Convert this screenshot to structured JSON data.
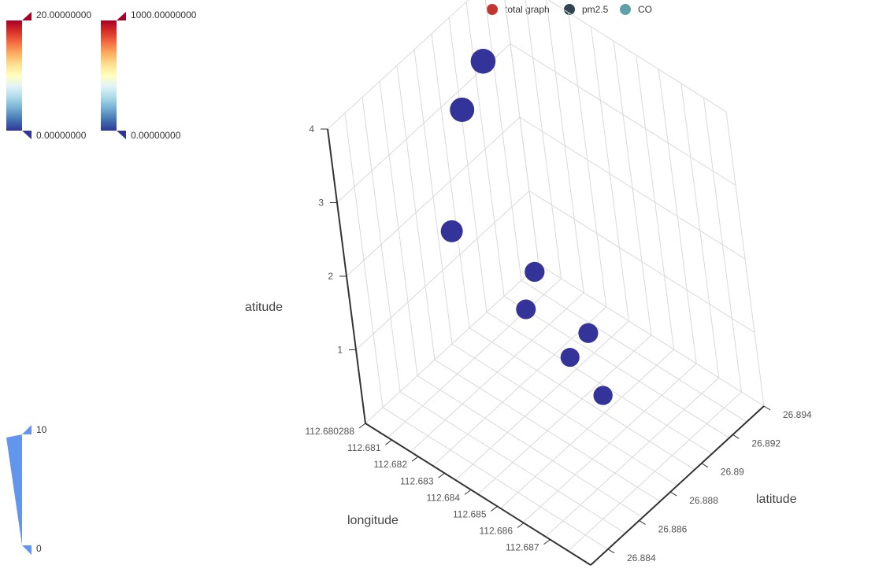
{
  "legend": [
    {
      "name": "total graph",
      "color": "#c23531"
    },
    {
      "name": "pm2.5",
      "color": "#2f4554"
    },
    {
      "name": "CO",
      "color": "#61a0a8"
    }
  ],
  "visual_maps": [
    {
      "type": "continuous",
      "max_label": "20.00000000",
      "min_label": "0.00000000",
      "colors": [
        "#313695",
        "#4575b4",
        "#74add1",
        "#abd9e9",
        "#e0f3f8",
        "#ffffbf",
        "#fee090",
        "#fdae61",
        "#f46d43",
        "#d73027",
        "#a50026"
      ],
      "handle_color": "#a50026",
      "min_handle_color": "#313695"
    },
    {
      "type": "continuous",
      "max_label": "1000.00000000",
      "min_label": "0.00000000",
      "colors": [
        "#313695",
        "#4575b4",
        "#74add1",
        "#abd9e9",
        "#e0f3f8",
        "#ffffbf",
        "#fee090",
        "#fdae61",
        "#f46d43",
        "#d73027",
        "#a50026"
      ],
      "handle_color": "#a50026",
      "min_handle_color": "#313695"
    },
    {
      "type": "size",
      "max_label": "10",
      "min_label": "0",
      "color": "#6495ed"
    }
  ],
  "chart_data": {
    "type": "scatter3d",
    "x_axis": {
      "name": "longitude",
      "ticks": [
        "112.680288",
        "112.681",
        "112.682",
        "112.683",
        "112.684",
        "112.685",
        "112.686",
        "112.687"
      ]
    },
    "y_axis": {
      "name": "latitude",
      "ticks": [
        "26.884",
        "26.886",
        "26.888",
        "26.89",
        "26.892",
        "26.894"
      ]
    },
    "z_axis": {
      "name": "atitude",
      "ticks": [
        "1",
        "2",
        "3",
        "4"
      ]
    },
    "point_color": "#333399",
    "points": [
      {
        "x": 112.6815,
        "y": 26.8875,
        "z": 2.0
      },
      {
        "x": 112.6808,
        "y": 26.89,
        "z": 3.0
      },
      {
        "x": 112.6805,
        "y": 26.892,
        "z": 3.2
      },
      {
        "x": 112.6803,
        "y": 26.894,
        "z": 4.0
      },
      {
        "x": 112.683,
        "y": 26.889,
        "z": 1.0
      },
      {
        "x": 112.6825,
        "y": 26.8905,
        "z": 1.1
      },
      {
        "x": 112.6845,
        "y": 26.889,
        "z": 0.7
      },
      {
        "x": 112.685,
        "y": 26.8895,
        "z": 1.05
      },
      {
        "x": 112.6863,
        "y": 26.888,
        "z": 0.8
      }
    ]
  }
}
